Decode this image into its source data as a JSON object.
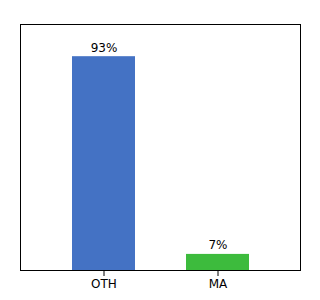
{
  "chart_data": {
    "type": "bar",
    "categories": [
      "OTH",
      "MA"
    ],
    "values": [
      93,
      7
    ],
    "value_labels": [
      "93%",
      "7%"
    ],
    "data_labels": true,
    "colors": [
      "#4472c4",
      "#3dbb3d"
    ],
    "ylim": [
      0,
      107
    ],
    "grid": false,
    "tick_labels": "x"
  }
}
